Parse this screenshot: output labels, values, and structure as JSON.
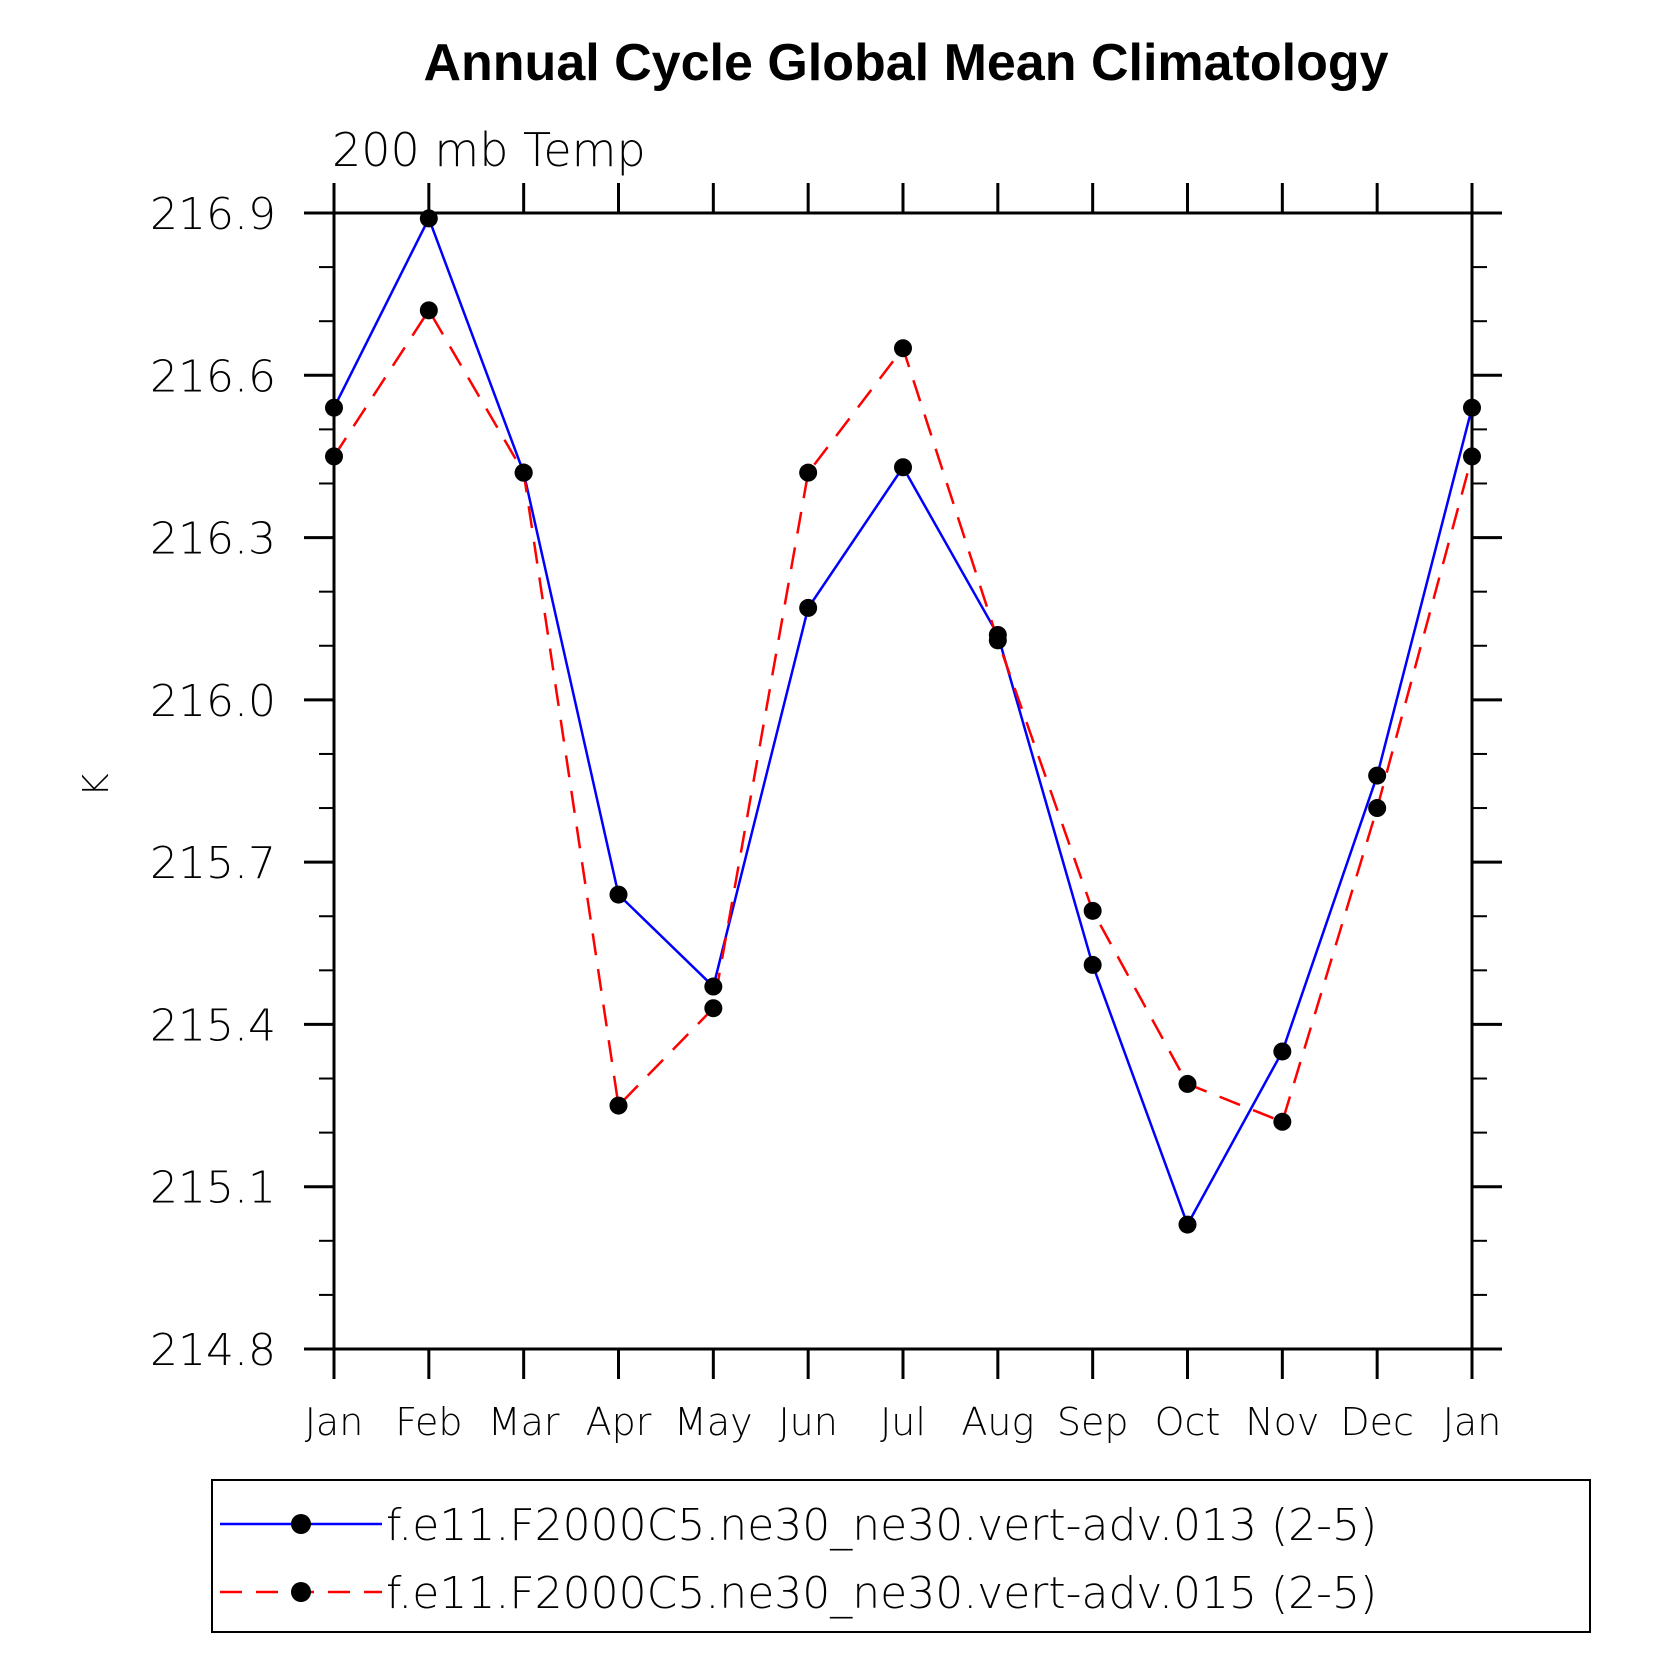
{
  "chart_data": {
    "type": "line",
    "title": "Annual Cycle Global Mean Climatology",
    "subtitle": "200 mb Temp",
    "xlabel": "",
    "ylabel": "K",
    "categories": [
      "Jan",
      "Feb",
      "Mar",
      "Apr",
      "May",
      "Jun",
      "Jul",
      "Aug",
      "Sep",
      "Oct",
      "Nov",
      "Dec",
      "Jan"
    ],
    "ylim": [
      214.8,
      216.9
    ],
    "yticks": [
      "216.9",
      "216.6",
      "216.3",
      "216.0",
      "215.7",
      "215.4",
      "215.1",
      "214.8"
    ],
    "grid": false,
    "legend_position": "bottom",
    "series": [
      {
        "name": "f.e11.F2000C5.ne30_ne30.vert-adv.013 (2-5)",
        "color": "#0000ff",
        "dash": "solid",
        "marker": "filled-circle",
        "values": [
          216.54,
          216.89,
          216.42,
          215.64,
          215.47,
          216.17,
          216.43,
          216.12,
          215.51,
          215.03,
          215.35,
          215.86,
          216.54
        ]
      },
      {
        "name": "f.e11.F2000C5.ne30_ne30.vert-adv.015 (2-5)",
        "color": "#ff0000",
        "dash": "dashed",
        "marker": "filled-circle",
        "values": [
          216.45,
          216.72,
          216.42,
          215.25,
          215.43,
          216.42,
          216.65,
          216.11,
          215.61,
          215.29,
          215.22,
          215.8,
          216.45
        ]
      }
    ]
  }
}
